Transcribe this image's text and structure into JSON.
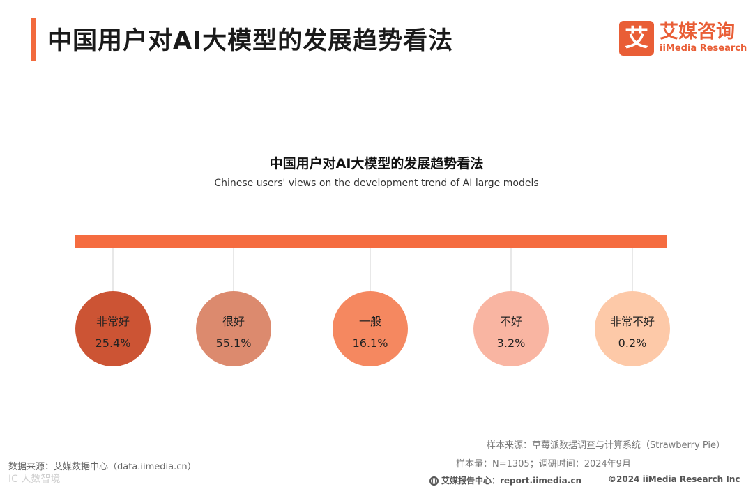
{
  "header": {
    "title": "中国用户对AI大模型的发展趋势看法",
    "accent_color": "#f26a3d"
  },
  "logo": {
    "mark": "艾",
    "name_cn": "艾媒咨询",
    "name_en": "iiMedia Research",
    "color": "#e95e36"
  },
  "chart_data": {
    "type": "bubble",
    "title": "中国用户对AI大模型的发展趋势看法",
    "subtitle": "Chinese users' views on the development trend of AI large models",
    "categories": [
      "非常好",
      "很好",
      "一般",
      "不好",
      "非常不好"
    ],
    "values": [
      25.4,
      55.1,
      16.1,
      3.2,
      0.2
    ],
    "value_labels": [
      "25.4%",
      "55.1%",
      "16.1%",
      "3.2%",
      "0.2%"
    ],
    "colors": [
      "#cc5434",
      "#dc8a6e",
      "#f58860",
      "#f9b5a2",
      "#fdc9a8"
    ],
    "bar_color": "#f56c40",
    "connector_color": "#d0d0d0"
  },
  "footer": {
    "data_source": "数据来源：艾媒数据中心（data.iimedia.cn）",
    "watermark": "IC 人数智境",
    "sample_source": "样本来源：草莓派数据调查与计算系统（Strawberry Pie）",
    "sample_size": "样本量：N=1305；调研时间：2024年9月",
    "report_center": "艾媒报告中心：report.iimedia.cn",
    "copyright": "©2024  iiMedia Research  Inc"
  }
}
